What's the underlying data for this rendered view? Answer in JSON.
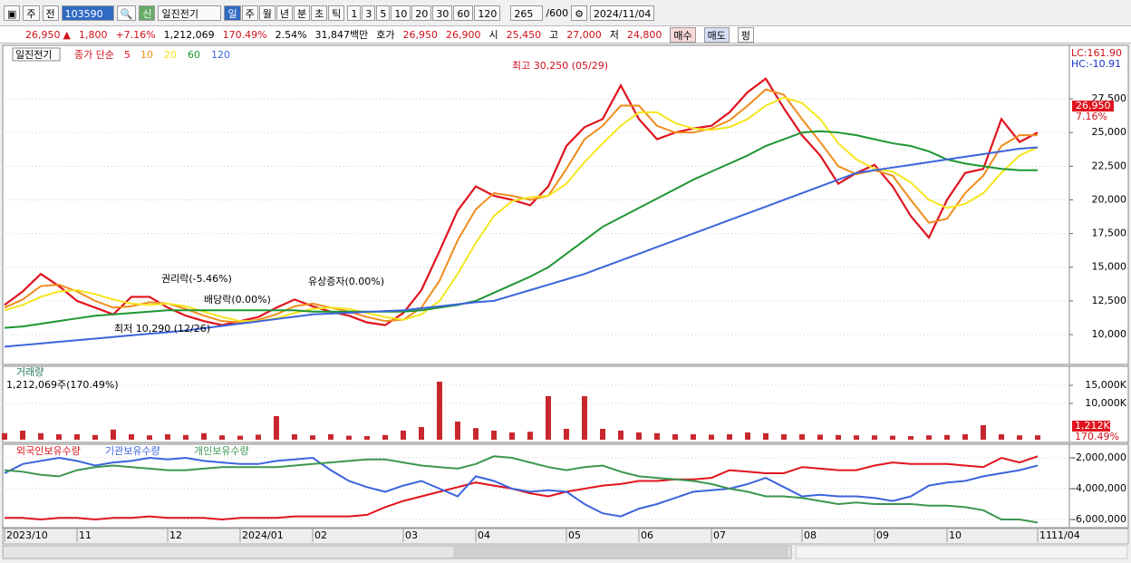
{
  "toolbar": {
    "market": "주",
    "scope": "전",
    "code": "103590",
    "badge": "신",
    "name": "일진전기",
    "periods": [
      "일",
      "주",
      "월",
      "년",
      "분",
      "초",
      "틱"
    ],
    "intervals": [
      "1",
      "3",
      "5",
      "10",
      "20",
      "30",
      "60",
      "120"
    ],
    "count": "265",
    "max": "/600",
    "date": "2024/11/04"
  },
  "info_bar": {
    "price": "26,950",
    "arrow": "▲",
    "change": "1,800",
    "rate": "+7.16%",
    "volume": "1,212,069",
    "volume_rate": "170.49%",
    "turnover": "2.54%",
    "amount": "31,847백만",
    "quote_label": "호가",
    "ask": "26,950",
    "bid": "26,900",
    "open_label": "시",
    "open": "25,450",
    "high_label": "고",
    "high": "27,000",
    "low_label": "저",
    "low": "24,800",
    "buy": "매수",
    "sell": "매도",
    "flat": "펑"
  },
  "chart_data": [
    {
      "type": "line",
      "name": "일진전기",
      "legend_title": "종가 단순",
      "grid": true,
      "categories": [
        "2023/10",
        null,
        null,
        null,
        "11",
        null,
        null,
        null,
        null,
        "12",
        null,
        null,
        null,
        "2024/01",
        null,
        null,
        null,
        "02",
        null,
        null,
        null,
        null,
        "03",
        null,
        null,
        null,
        "04",
        null,
        null,
        null,
        null,
        "05",
        null,
        null,
        null,
        "06",
        null,
        null,
        null,
        "07",
        null,
        null,
        null,
        null,
        "08",
        null,
        null,
        null,
        "09",
        null,
        null,
        null,
        "10",
        null,
        null,
        null,
        null,
        "11"
      ],
      "x_end_label": "11/04",
      "ylim": [
        7780,
        31340
      ],
      "yticks": [
        {
          "value": 10000,
          "label": "10,000"
        },
        {
          "value": 12500,
          "label": "12,500"
        },
        {
          "value": 15000,
          "label": "15,000"
        },
        {
          "value": 17500,
          "label": "17,500"
        },
        {
          "value": 20000,
          "label": "20,000"
        },
        {
          "value": 22500,
          "label": "22,500"
        },
        {
          "value": 25000,
          "label": "25,000"
        },
        {
          "value": 27500,
          "label": "27,500"
        }
      ],
      "series": [
        {
          "name": "5",
          "color": "#e0141e",
          "values": [
            12200,
            13200,
            14500,
            13600,
            12500,
            12000,
            11500,
            12800,
            12800,
            12000,
            11400,
            11000,
            10700,
            11000,
            11300,
            12000,
            12600,
            12100,
            11700,
            11400,
            10900,
            10700,
            11600,
            13300,
            16200,
            19200,
            21000,
            20300,
            20000,
            19600,
            21000,
            24000,
            25400,
            26000,
            28500,
            26000,
            24500,
            25000,
            25300,
            25500,
            26500,
            28000,
            29000,
            26800,
            24800,
            23300,
            21200,
            22000,
            22600,
            21000,
            18800,
            17200,
            20000,
            22000,
            22300,
            26000,
            24300,
            25000
          ]
        },
        {
          "name": "10",
          "color": "#f08c1e",
          "values": [
            12000,
            12600,
            13600,
            13700,
            13200,
            12500,
            12000,
            12100,
            12400,
            12300,
            11900,
            11400,
            11000,
            10900,
            11100,
            11500,
            12100,
            12300,
            12000,
            11700,
            11300,
            11000,
            11100,
            12000,
            14000,
            17000,
            19300,
            20500,
            20300,
            20000,
            20300,
            22300,
            24500,
            25500,
            27000,
            27000,
            25500,
            25000,
            25000,
            25300,
            25900,
            27000,
            28200,
            27800,
            26000,
            24300,
            22500,
            21900,
            22200,
            21800,
            20000,
            18300,
            18600,
            20500,
            21800,
            24000,
            24800,
            24800
          ]
        },
        {
          "name": "20",
          "color": "#f5e61e",
          "values": [
            11800,
            12200,
            12800,
            13200,
            13300,
            13000,
            12600,
            12300,
            12200,
            12300,
            12100,
            11700,
            11300,
            11000,
            11000,
            11200,
            11600,
            11900,
            12000,
            11900,
            11600,
            11300,
            11100,
            11500,
            12500,
            14500,
            16800,
            18800,
            19900,
            20200,
            20300,
            21200,
            22800,
            24200,
            25500,
            26500,
            26500,
            25700,
            25300,
            25200,
            25400,
            26000,
            27000,
            27600,
            27200,
            26000,
            24200,
            23000,
            22300,
            22100,
            21300,
            20000,
            19400,
            19700,
            20500,
            22000,
            23300,
            23900
          ]
        },
        {
          "name": "60",
          "color": "#1e9632",
          "values": [
            10500,
            10600,
            10800,
            11000,
            11200,
            11400,
            11500,
            11600,
            11700,
            11800,
            11800,
            11800,
            11800,
            11800,
            11800,
            11800,
            11800,
            11700,
            11700,
            11700,
            11700,
            11700,
            11700,
            11800,
            12000,
            12200,
            12500,
            13100,
            13700,
            14300,
            15000,
            16000,
            17000,
            18000,
            18700,
            19400,
            20100,
            20800,
            21500,
            22100,
            22700,
            23300,
            24000,
            24500,
            25000,
            25100,
            25000,
            24800,
            24500,
            24200,
            24000,
            23600,
            23000,
            22700,
            22500,
            22300,
            22200,
            22200
          ]
        },
        {
          "name": "120",
          "color": "#3c64dc",
          "values": [
            9100,
            9220,
            9340,
            9460,
            9580,
            9700,
            9820,
            9940,
            10060,
            10180,
            10300,
            10470,
            10640,
            10810,
            10980,
            11150,
            11320,
            11500,
            11560,
            11620,
            11680,
            11740,
            11800,
            11950,
            12100,
            12250,
            12400,
            12500,
            12900,
            13300,
            13700,
            14100,
            14500,
            15000,
            15500,
            16000,
            16500,
            17000,
            17500,
            18000,
            18500,
            19000,
            19500,
            20000,
            20500,
            21000,
            21500,
            22000,
            22200,
            22400,
            22600,
            22800,
            23000,
            23200,
            23400,
            23600,
            23800,
            23900
          ]
        }
      ],
      "annotations": [
        "최고 30,250 (05/29)",
        "최저 10,290 (12/26)",
        "권리락(-5.46%)",
        "배당락(0.00%)",
        "유상증자(0.00%)"
      ],
      "lc": "LC:161.90",
      "hc": "HC:-10.91",
      "price_label": "26,950",
      "rate_label": "7.16%"
    },
    {
      "type": "bar",
      "title": "거래량",
      "subtitle": "1,212,069주(170.49%)",
      "color": "#c8282d",
      "ylim": [
        0,
        19750
      ],
      "yticks": [
        {
          "value": 10000,
          "label": "10,000K"
        },
        {
          "value": 15000,
          "label": "15,000K"
        }
      ],
      "values": [
        1800,
        2500,
        1800,
        1500,
        1500,
        1300,
        2800,
        1500,
        1200,
        1500,
        1300,
        1800,
        1200,
        1100,
        1400,
        6500,
        1500,
        1200,
        1500,
        1100,
        1000,
        1300,
        2500,
        3500,
        16000,
        5000,
        3200,
        2500,
        2000,
        2200,
        12000,
        3000,
        12000,
        3000,
        2500,
        2000,
        1800,
        1500,
        1500,
        1400,
        1500,
        2000,
        1800,
        1500,
        1500,
        1400,
        1300,
        1200,
        1200,
        1100,
        1000,
        1200,
        1300,
        1500,
        4000,
        1500,
        1200,
        1212
      ],
      "last_label": "1,212K",
      "rate_label": "170.49%"
    },
    {
      "type": "line",
      "ylim": [
        -6529000,
        -1235000
      ],
      "yticks": [
        {
          "value": -2000000,
          "label": "-2,000,000"
        },
        {
          "value": -4000000,
          "label": "-4,000,000"
        },
        {
          "value": -6000000,
          "label": "-6,000,000"
        }
      ],
      "series": [
        {
          "name": "외국인보유수량",
          "color": "#e0141e",
          "values": [
            -5900000,
            -5900000,
            -6000000,
            -5900000,
            -5900000,
            -6000000,
            -5900000,
            -5900000,
            -5800000,
            -5900000,
            -5900000,
            -5900000,
            -6000000,
            -5900000,
            -5900000,
            -5900000,
            -5800000,
            -5800000,
            -5800000,
            -5800000,
            -5700000,
            -5200000,
            -4800000,
            -4500000,
            -4200000,
            -3900000,
            -3600000,
            -3800000,
            -4000000,
            -4300000,
            -4500000,
            -4200000,
            -4000000,
            -3800000,
            -3700000,
            -3500000,
            -3500000,
            -3400000,
            -3400000,
            -3300000,
            -2800000,
            -2900000,
            -3000000,
            -3000000,
            -2600000,
            -2700000,
            -2800000,
            -2800000,
            -2500000,
            -2300000,
            -2400000,
            -2400000,
            -2400000,
            -2500000,
            -2600000,
            -2000000,
            -2300000,
            -1900000
          ]
        },
        {
          "name": "기관보유수량",
          "color": "#3c64dc",
          "values": [
            -3000000,
            -2400000,
            -2200000,
            -2000000,
            -2200000,
            -2500000,
            -2300000,
            -2200000,
            -2000000,
            -2100000,
            -2000000,
            -2200000,
            -2300000,
            -2400000,
            -2400000,
            -2200000,
            -2100000,
            -2000000,
            -2800000,
            -3500000,
            -3900000,
            -4200000,
            -3800000,
            -3500000,
            -4000000,
            -4500000,
            -3200000,
            -3500000,
            -4000000,
            -4200000,
            -4100000,
            -4200000,
            -5000000,
            -5600000,
            -5800000,
            -5300000,
            -5000000,
            -4600000,
            -4200000,
            -4100000,
            -4000000,
            -3700000,
            -3300000,
            -3900000,
            -4500000,
            -4400000,
            -4500000,
            -4500000,
            -4600000,
            -4800000,
            -4500000,
            -3800000,
            -3600000,
            -3500000,
            -3200000,
            -3000000,
            -2800000,
            -2500000
          ]
        },
        {
          "name": "개인보유수량",
          "color": "#3c9650",
          "values": [
            -2800000,
            -2900000,
            -3100000,
            -3200000,
            -2800000,
            -2600000,
            -2500000,
            -2600000,
            -2700000,
            -2800000,
            -2800000,
            -2700000,
            -2600000,
            -2600000,
            -2600000,
            -2600000,
            -2500000,
            -2400000,
            -2300000,
            -2200000,
            -2100000,
            -2100000,
            -2300000,
            -2500000,
            -2600000,
            -2700000,
            -2400000,
            -1900000,
            -2000000,
            -2300000,
            -2600000,
            -2800000,
            -2600000,
            -2500000,
            -2900000,
            -3200000,
            -3300000,
            -3400000,
            -3500000,
            -3700000,
            -4000000,
            -4200000,
            -4500000,
            -4500000,
            -4600000,
            -4800000,
            -5000000,
            -4900000,
            -5000000,
            -5000000,
            -5000000,
            -5100000,
            -5100000,
            -5200000,
            -5400000,
            -6000000,
            -6000000,
            -6200000
          ]
        }
      ]
    }
  ]
}
